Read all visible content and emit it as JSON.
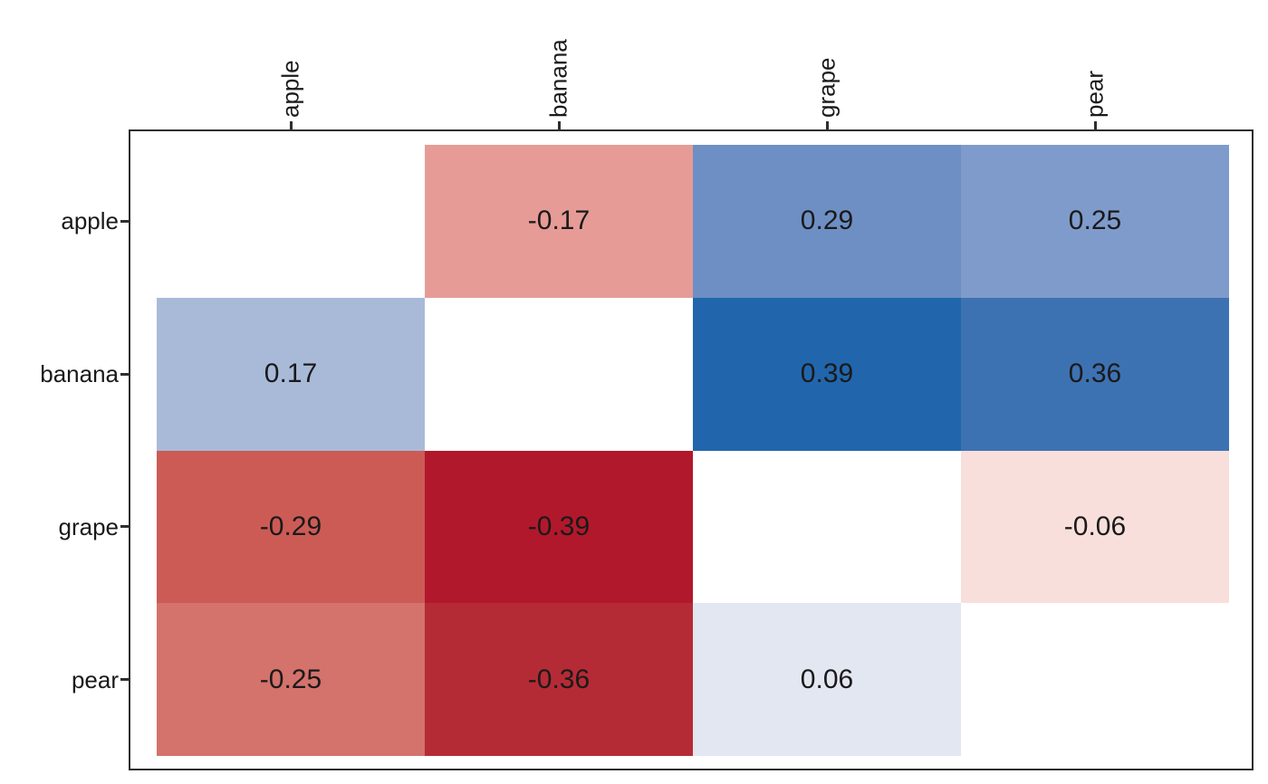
{
  "chart_data": {
    "type": "heatmap",
    "title": "",
    "x_categories": [
      "apple",
      "banana",
      "grape",
      "pear"
    ],
    "y_categories": [
      "apple",
      "banana",
      "grape",
      "pear"
    ],
    "matrix": [
      [
        null,
        -0.17,
        0.29,
        0.25
      ],
      [
        0.17,
        null,
        0.39,
        0.36
      ],
      [
        -0.29,
        -0.39,
        null,
        -0.06
      ],
      [
        -0.25,
        -0.36,
        0.06,
        null
      ]
    ],
    "cell_colors": [
      [
        "#ffffff",
        "#e69b96",
        "#6e8fc4",
        "#7f9bcb"
      ],
      [
        "#a9bad9",
        "#ffffff",
        "#2166ac",
        "#3d72b2"
      ],
      [
        "#cc5b56",
        "#b2182b",
        "#ffffff",
        "#f9dfdb"
      ],
      [
        "#d4726c",
        "#b52b35",
        "#e3e7f2",
        "#ffffff"
      ]
    ],
    "value_decimals": 2,
    "diagonal_blank": true,
    "legend": "none",
    "gridlines": "off",
    "value_text_color": "#1a1a1a",
    "axis_text_color": "#1a1a1a",
    "panel_border_color": "#2e2e2e",
    "tick_color": "#2e2e2e",
    "background_color": "#ffffff"
  }
}
